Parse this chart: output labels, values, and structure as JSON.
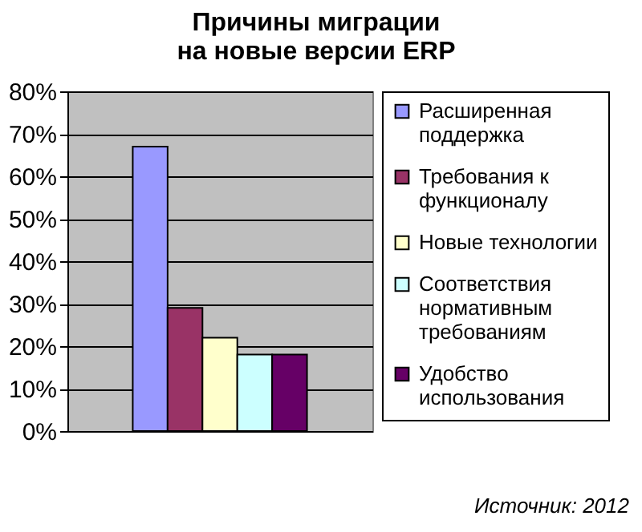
{
  "chart_data": {
    "type": "bar",
    "title": "Причины миграции на новые версии ERP",
    "categories": [
      null
    ],
    "series": [
      {
        "name": "Расширенная поддержка",
        "color": "#9999ff",
        "values": [
          67
        ]
      },
      {
        "name": "Требования к функционалу",
        "color": "#993366",
        "values": [
          29
        ]
      },
      {
        "name": "Новые технологии",
        "color": "#ffffcc",
        "values": [
          22
        ]
      },
      {
        "name": "Соответствия нормативным требованиям",
        "color": "#ccffff",
        "values": [
          18
        ]
      },
      {
        "name": "Удобство использования",
        "color": "#660066",
        "values": [
          18
        ]
      }
    ],
    "ylim": [
      0,
      80
    ],
    "yticks": [
      {
        "value": 0,
        "label": "0%"
      },
      {
        "value": 10,
        "label": "10%"
      },
      {
        "value": 20,
        "label": "20%"
      },
      {
        "value": 30,
        "label": "30%"
      },
      {
        "value": 40,
        "label": "40%"
      },
      {
        "value": 50,
        "label": "50%"
      },
      {
        "value": 60,
        "label": "60%"
      },
      {
        "value": 70,
        "label": "70%"
      },
      {
        "value": 80,
        "label": "80%"
      }
    ],
    "grid": "y",
    "legend": "right",
    "annotations": [
      "Источник: 2012"
    ]
  }
}
